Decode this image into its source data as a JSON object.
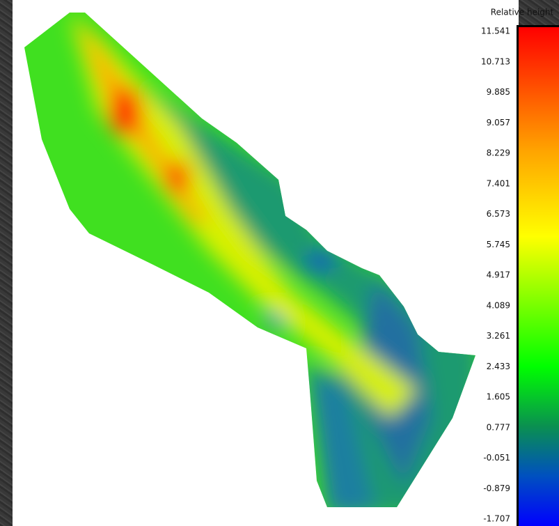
{
  "colorbar": {
    "title": "Relative height",
    "ticks": [
      11.541,
      10.713,
      9.885,
      9.057,
      8.229,
      7.401,
      6.573,
      5.745,
      4.917,
      4.089,
      3.261,
      2.433,
      1.605,
      0.777,
      -0.051,
      -0.879,
      -1.707
    ]
  }
}
